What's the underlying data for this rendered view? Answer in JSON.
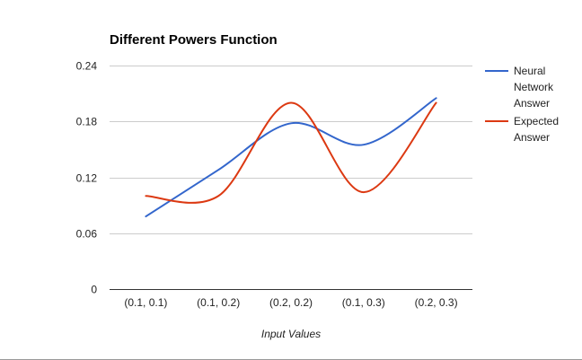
{
  "chart_data": {
    "type": "line",
    "title": "Different Powers Function",
    "xlabel": "Input Values",
    "ylabel": "",
    "categories": [
      "(0.1, 0.1)",
      "(0.1, 0.2)",
      "(0.2, 0.2)",
      "(0.1, 0.3)",
      "(0.2, 0.3)"
    ],
    "yticks": [
      "0",
      "0.06",
      "0.12",
      "0.18",
      "0.24"
    ],
    "ylim": [
      0,
      0.24
    ],
    "grid": true,
    "smooth": true,
    "legend": "right",
    "series": [
      {
        "name": "Neural Network Answer",
        "legend_lines": [
          "Neural",
          "Network",
          "Answer"
        ],
        "color": "#3366cc",
        "values": [
          0.078,
          0.128,
          0.178,
          0.155,
          0.205
        ]
      },
      {
        "name": "Expected Answer",
        "legend_lines": [
          "Expected",
          "Answer"
        ],
        "color": "#dc3912",
        "values": [
          0.1,
          0.1,
          0.2,
          0.104,
          0.2
        ]
      }
    ]
  }
}
